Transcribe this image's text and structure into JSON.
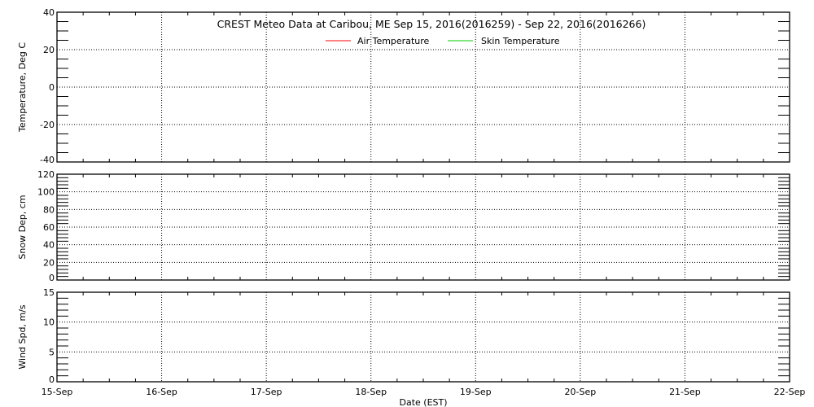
{
  "chart_data": {
    "title": "CREST Meteo Data at Caribou, ME   Sep 15, 2016(2016259) - Sep 22, 2016(2016266)",
    "xlabel": "Date (EST)",
    "x_tick_labels": [
      "15-Sep",
      "16-Sep",
      "17-Sep",
      "18-Sep",
      "19-Sep",
      "20-Sep",
      "21-Sep",
      "22-Sep"
    ],
    "grid": true,
    "legend": {
      "placement": "top-center",
      "entries": [
        {
          "name": "Air Temperature",
          "color": "#ff0000"
        },
        {
          "name": "Skin Temperature",
          "color": "#00cc00"
        }
      ]
    },
    "panels": [
      {
        "type": "line",
        "ylabel": "Temperature, Deg C",
        "ylim": [
          -40,
          40
        ],
        "major_step": 20,
        "minor_step": 5,
        "y_tick_labels": [
          "-40",
          "-20",
          "0",
          "20",
          "40"
        ],
        "series": [
          {
            "name": "Air Temperature",
            "values": []
          },
          {
            "name": "Skin Temperature",
            "values": []
          }
        ]
      },
      {
        "type": "line",
        "ylabel": "Snow Dep, cm",
        "ylim": [
          0,
          120
        ],
        "major_step": 20,
        "minor_step": 4,
        "y_tick_labels": [
          "0",
          "20",
          "40",
          "60",
          "80",
          "100",
          "120"
        ],
        "series": []
      },
      {
        "type": "line",
        "ylabel": "Wind Spd, m/s",
        "ylim": [
          0,
          15
        ],
        "major_step": 5,
        "minor_step": 1,
        "y_tick_labels": [
          "0",
          "5",
          "10",
          "15"
        ],
        "series": []
      }
    ]
  }
}
